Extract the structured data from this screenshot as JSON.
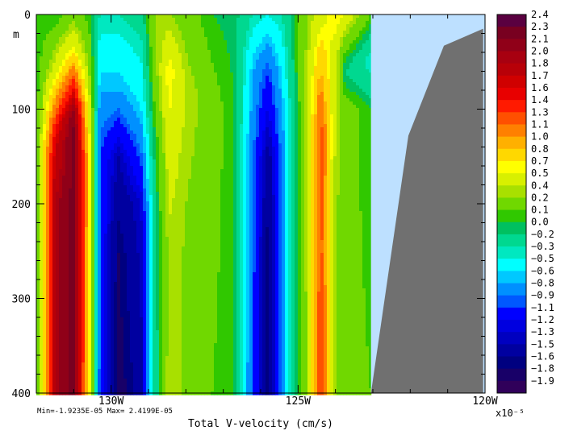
{
  "chart_data": {
    "type": "heatmap",
    "title": "",
    "xlabel": "Total V-velocity (cm/s)",
    "ylabel": "m",
    "x_range": [
      -132.0,
      -120.0
    ],
    "y_range": [
      0,
      400
    ],
    "y_inverted": true,
    "x_ticks": [
      {
        "value": -130,
        "label": "130W"
      },
      {
        "value": -125,
        "label": "125W"
      },
      {
        "value": -120,
        "label": "120W"
      }
    ],
    "y_ticks": [
      {
        "value": 0,
        "label": "0"
      },
      {
        "value": 100,
        "label": "100"
      },
      {
        "value": 200,
        "label": "200"
      },
      {
        "value": 300,
        "label": "300"
      },
      {
        "value": 400,
        "label": "400"
      }
    ],
    "stats_text": "Min=-1.9235E-05  Max= 2.4199E-05",
    "colorbar": {
      "exponent_label": "x10⁻⁵",
      "labels": [
        "2.4",
        "2.3",
        "2.1",
        "2.0",
        "1.8",
        "1.7",
        "1.6",
        "1.4",
        "1.3",
        "1.1",
        "1.0",
        "0.8",
        "0.7",
        "0.5",
        "0.4",
        "0.2",
        "0.1",
        "0.0",
        "−0.2",
        "−0.3",
        "−0.5",
        "−0.6",
        "−0.8",
        "−0.9",
        "−1.1",
        "−1.2",
        "−1.3",
        "−1.5",
        "−1.6",
        "−1.8",
        "−1.9"
      ],
      "colors": [
        "#5a0040",
        "#780020",
        "#900018",
        "#a80010",
        "#b80008",
        "#d00000",
        "#e80000",
        "#ff1a00",
        "#ff5000",
        "#ff8000",
        "#ffb000",
        "#ffd800",
        "#ffff00",
        "#d8f000",
        "#a8e000",
        "#70d800",
        "#30c800",
        "#00c060",
        "#00d890",
        "#00e8c0",
        "#00ffff",
        "#00c8ff",
        "#0090ff",
        "#0058ff",
        "#0000ff",
        "#0000e0",
        "#0000c0",
        "#0000a0",
        "#000080",
        "#180068",
        "#30005a"
      ],
      "values": [
        2.4,
        2.3,
        2.1,
        2.0,
        1.8,
        1.7,
        1.6,
        1.4,
        1.3,
        1.1,
        1.0,
        0.8,
        0.7,
        0.5,
        0.4,
        0.2,
        0.1,
        0.0,
        -0.2,
        -0.3,
        -0.5,
        -0.6,
        -0.8,
        -0.9,
        -1.1,
        -1.2,
        -1.3,
        -1.5,
        -1.6,
        -1.8,
        -1.9
      ]
    },
    "field": {
      "min": -1.9235,
      "max": 2.4199,
      "columns": [
        {
          "lon": -131.95,
          "profile": [
            [
              0,
              0.1
            ],
            [
              50,
              0.15
            ],
            [
              150,
              0.3
            ],
            [
              400,
              0.3
            ]
          ]
        },
        {
          "lon": -131.5,
          "profile": [
            [
              0,
              0.1
            ],
            [
              60,
              0.6
            ],
            [
              130,
              1.7
            ],
            [
              200,
              2.0
            ],
            [
              400,
              2.0
            ]
          ]
        },
        {
          "lon": -131.0,
          "profile": [
            [
              0,
              0.3
            ],
            [
              40,
              0.8
            ],
            [
              110,
              2.3
            ],
            [
              200,
              2.4
            ],
            [
              400,
              2.4
            ]
          ]
        },
        {
          "lon": -130.55,
          "profile": [
            [
              0,
              0.1
            ],
            [
              80,
              0.4
            ],
            [
              150,
              0.7
            ],
            [
              400,
              0.6
            ]
          ]
        },
        {
          "lon": -130.3,
          "profile": [
            [
              0,
              -0.2
            ],
            [
              60,
              -0.5
            ],
            [
              150,
              -0.9
            ],
            [
              400,
              -0.9
            ]
          ]
        },
        {
          "lon": -129.8,
          "profile": [
            [
              0,
              -0.2
            ],
            [
              80,
              -0.6
            ],
            [
              150,
              -1.3
            ],
            [
              250,
              -1.6
            ],
            [
              400,
              -1.7
            ]
          ]
        },
        {
          "lon": -129.2,
          "profile": [
            [
              0,
              -0.1
            ],
            [
              100,
              -0.5
            ],
            [
              200,
              -1.2
            ],
            [
              400,
              -1.4
            ]
          ]
        },
        {
          "lon": -128.85,
          "profile": [
            [
              0,
              0.4
            ],
            [
              60,
              0.3
            ],
            [
              150,
              0.0
            ],
            [
              300,
              -0.1
            ],
            [
              400,
              -0.2
            ]
          ]
        },
        {
          "lon": -128.45,
          "profile": [
            [
              0,
              0.4
            ],
            [
              60,
              0.8
            ],
            [
              150,
              0.6
            ],
            [
              250,
              0.45
            ],
            [
              400,
              0.5
            ]
          ]
        },
        {
          "lon": -128.0,
          "profile": [
            [
              0,
              0.3
            ],
            [
              80,
              0.5
            ],
            [
              200,
              0.4
            ],
            [
              400,
              0.35
            ]
          ]
        },
        {
          "lon": -127.3,
          "profile": [
            [
              0,
              0.1
            ],
            [
              100,
              0.3
            ],
            [
              250,
              0.25
            ],
            [
              400,
              0.2
            ]
          ]
        },
        {
          "lon": -126.7,
          "profile": [
            [
              0,
              0.05
            ],
            [
              100,
              0.1
            ],
            [
              400,
              0.1
            ]
          ]
        },
        {
          "lon": -126.2,
          "profile": [
            [
              0,
              -0.2
            ],
            [
              60,
              -0.6
            ],
            [
              150,
              -0.8
            ],
            [
              400,
              -0.9
            ]
          ]
        },
        {
          "lon": -125.8,
          "profile": [
            [
              0,
              -0.3
            ],
            [
              60,
              -0.9
            ],
            [
              150,
              -1.4
            ],
            [
              250,
              -1.6
            ],
            [
              400,
              -1.6
            ]
          ]
        },
        {
          "lon": -125.45,
          "profile": [
            [
              0,
              -0.2
            ],
            [
              60,
              -0.5
            ],
            [
              150,
              -0.8
            ],
            [
              400,
              -0.8
            ]
          ]
        },
        {
          "lon": -125.1,
          "profile": [
            [
              0,
              0.1
            ],
            [
              100,
              0.0
            ],
            [
              400,
              0.0
            ]
          ]
        },
        {
          "lon": -124.75,
          "profile": [
            [
              0,
              0.4
            ],
            [
              80,
              0.5
            ],
            [
              200,
              0.5
            ],
            [
              400,
              0.4
            ]
          ]
        },
        {
          "lon": -124.4,
          "profile": [
            [
              0,
              0.6
            ],
            [
              40,
              0.9
            ],
            [
              120,
              1.4
            ],
            [
              250,
              1.4
            ],
            [
              400,
              1.5
            ]
          ]
        },
        {
          "lon": -124.0,
          "profile": [
            [
              0,
              0.8
            ],
            [
              40,
              0.6
            ],
            [
              100,
              0.5
            ],
            [
              250,
              0.4
            ],
            [
              400,
              0.4
            ]
          ]
        },
        {
          "lon": -123.75,
          "profile": [
            [
              0,
              0.7
            ],
            [
              40,
              0.2
            ],
            [
              60,
              0.0
            ],
            [
              100,
              0.3
            ],
            [
              400,
              0.3
            ]
          ]
        },
        {
          "lon": -123.05,
          "profile": [
            [
              0,
              0.2
            ],
            [
              50,
              -0.3
            ],
            [
              100,
              0.1
            ],
            [
              400,
              0.2
            ]
          ]
        }
      ]
    },
    "no_data_color": "#bde0ff",
    "land_color": "#707070",
    "no_data_boundary_lon": -123.05,
    "land_boundary": [
      [
        -123.05,
        400
      ],
      [
        -122.05,
        128
      ],
      [
        -121.1,
        33
      ],
      [
        -120.05,
        15
      ],
      [
        -120.05,
        400
      ]
    ]
  }
}
